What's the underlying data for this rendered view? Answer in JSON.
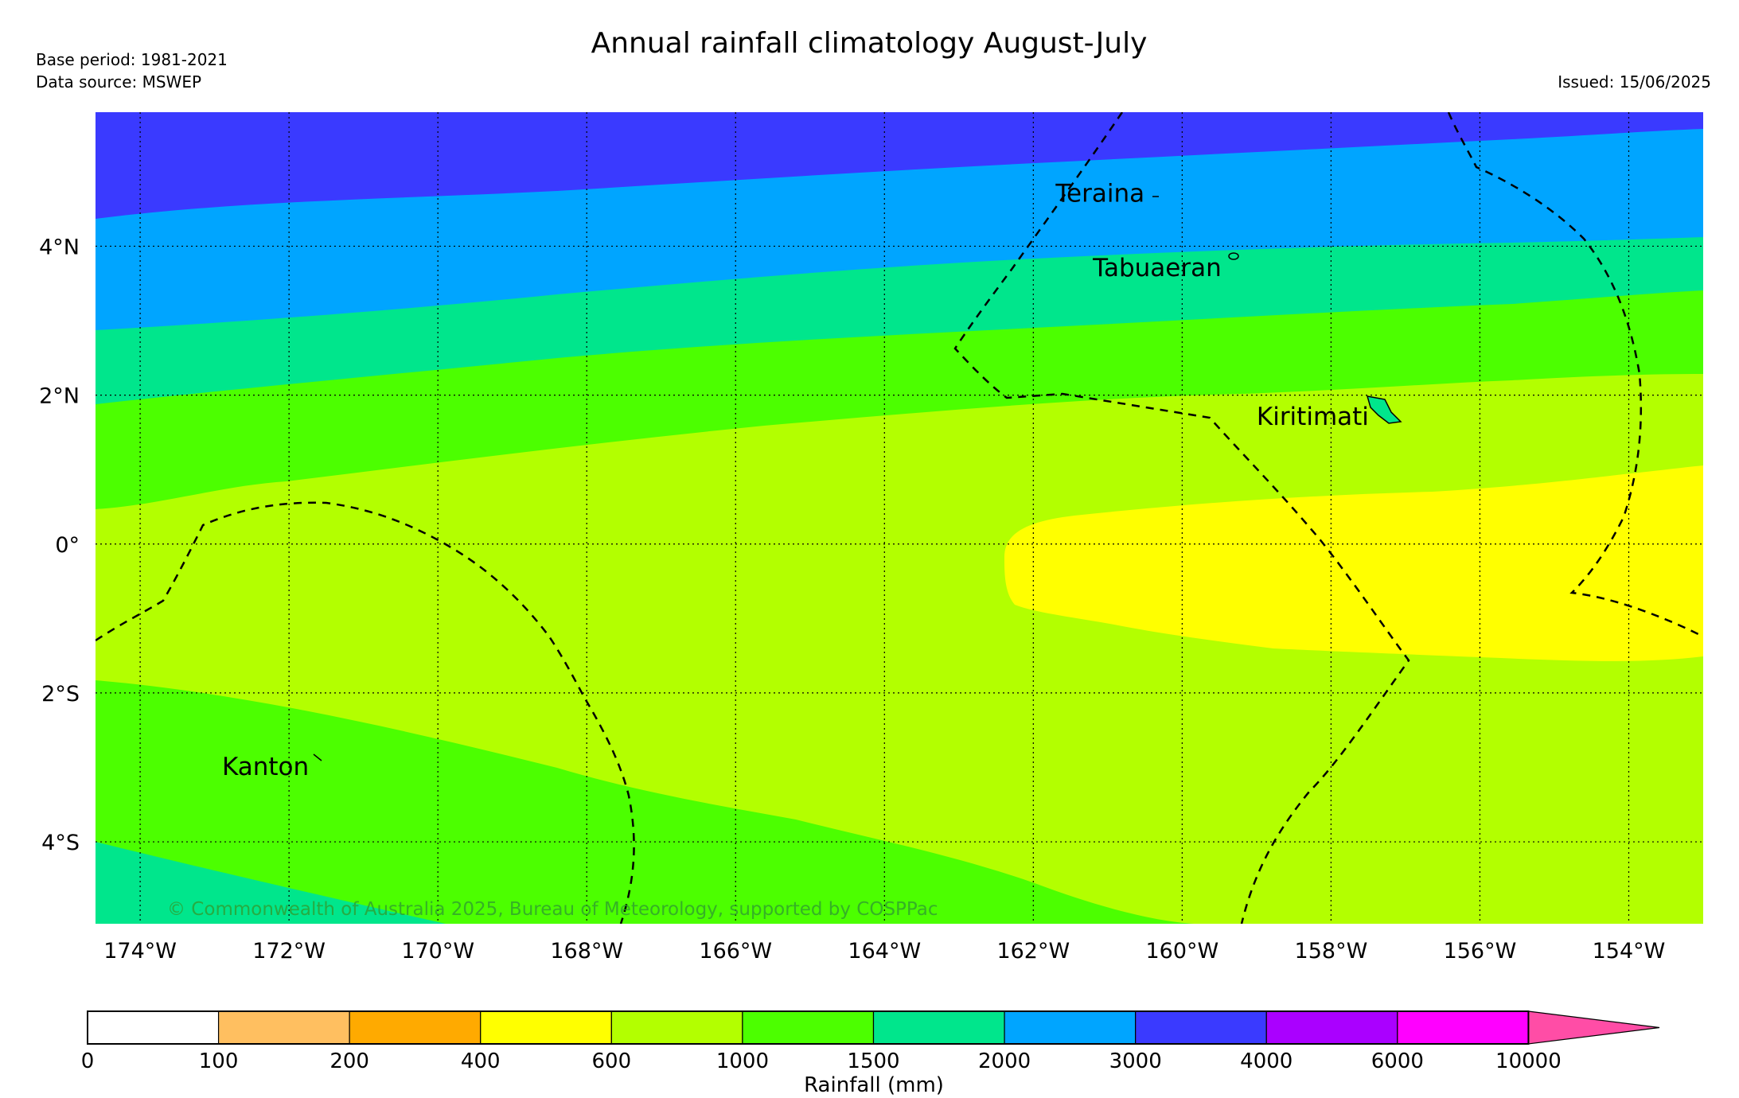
{
  "title": "Annual rainfall climatology August-July",
  "meta": {
    "base_period": "Base period: 1981-2021",
    "data_source": "Data source: MSWEP",
    "issued": "Issued: 15/06/2025"
  },
  "copyright": "© Commonwealth of Australia 2025, Bureau of Meteorology, supported by COSPPac",
  "map": {
    "lon_range": [
      -174.6,
      -153.0
    ],
    "lat_range": [
      -5.1,
      5.8
    ],
    "lon_ticks": [
      {
        "value": -174,
        "label": "174°W"
      },
      {
        "value": -172,
        "label": "172°W"
      },
      {
        "value": -170,
        "label": "170°W"
      },
      {
        "value": -168,
        "label": "168°W"
      },
      {
        "value": -166,
        "label": "166°W"
      },
      {
        "value": -164,
        "label": "164°W"
      },
      {
        "value": -162,
        "label": "162°W"
      },
      {
        "value": -160,
        "label": "160°W"
      },
      {
        "value": -158,
        "label": "158°W"
      },
      {
        "value": -156,
        "label": "156°W"
      },
      {
        "value": -154,
        "label": "154°W"
      }
    ],
    "lat_ticks": [
      {
        "value": 4,
        "label": "4°N"
      },
      {
        "value": 2,
        "label": "2°N"
      },
      {
        "value": 0,
        "label": "0°"
      },
      {
        "value": -2,
        "label": "2°S"
      },
      {
        "value": -4,
        "label": "4°S"
      }
    ],
    "place_labels": [
      {
        "name": "Teraina",
        "lon": -161.7,
        "lat": 4.6
      },
      {
        "name": "Tabuaeran",
        "lon": -161.2,
        "lat": 3.6
      },
      {
        "name": "Kiritimati",
        "lon": -159.0,
        "lat": 1.6
      },
      {
        "name": "Kanton",
        "lon": -172.9,
        "lat": -3.1
      }
    ]
  },
  "colorbar": {
    "label": "Rainfall (mm)",
    "ticks": [
      "0",
      "100",
      "200",
      "400",
      "600",
      "1000",
      "1500",
      "2000",
      "3000",
      "4000",
      "6000",
      "10000"
    ],
    "colors": [
      "#ffffff",
      "#ffbf60",
      "#ffaa00",
      "#ffff00",
      "#b3ff00",
      "#4cff00",
      "#00e68c",
      "#00a5ff",
      "#3a3aff",
      "#aa00ff",
      "#ff00ff"
    ],
    "extend_color": "#ff4da6"
  }
}
